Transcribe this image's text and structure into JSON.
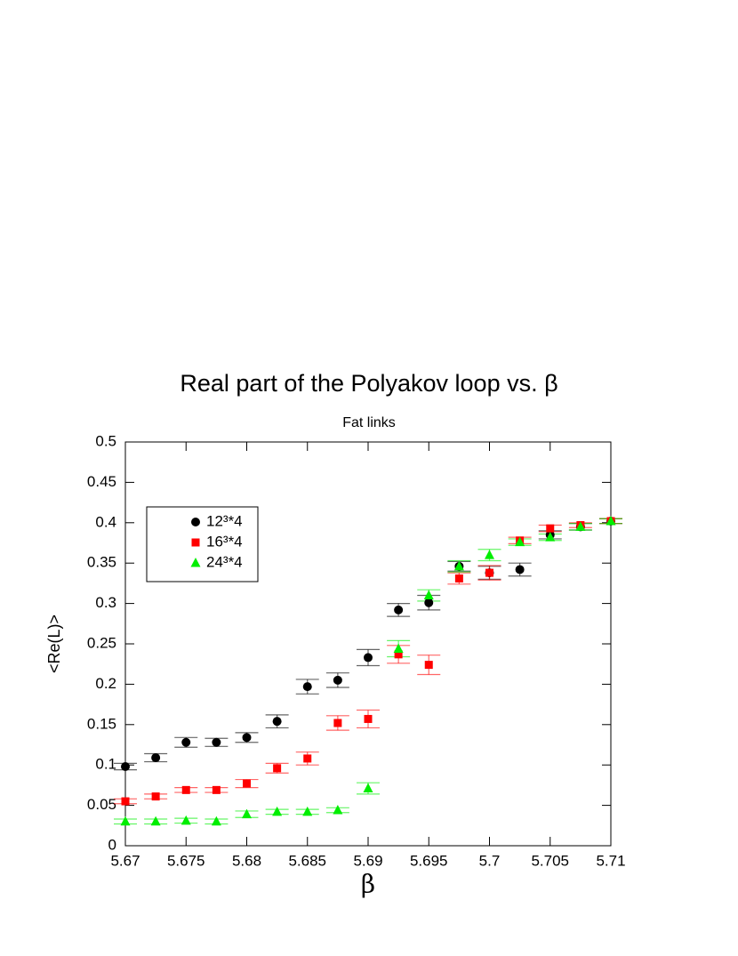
{
  "chart_data": {
    "type": "scatter",
    "title": "Real part of the Polyakov loop vs.  β",
    "subtitle": "Fat links",
    "x_label": "β",
    "y_label": "<Re(L)>",
    "x": [
      5.67,
      5.6725,
      5.675,
      5.6775,
      5.68,
      5.6825,
      5.685,
      5.6875,
      5.69,
      5.6925,
      5.695,
      5.6975,
      5.7,
      5.7025,
      5.705,
      5.7075,
      5.71
    ],
    "series": [
      {
        "name": "12³*4",
        "color": "#000000",
        "marker": "circle",
        "values": [
          0.098,
          0.109,
          0.128,
          0.128,
          0.134,
          0.154,
          0.197,
          0.205,
          0.233,
          0.292,
          0.301,
          0.346,
          0.338,
          0.342,
          0.385,
          0.395,
          0.402
        ],
        "errors": [
          0.004,
          0.005,
          0.006,
          0.005,
          0.006,
          0.008,
          0.009,
          0.009,
          0.01,
          0.008,
          0.009,
          0.006,
          0.008,
          0.008,
          0.005,
          0.004,
          0.003
        ]
      },
      {
        "name": "16³*4",
        "color": "#ff0000",
        "marker": "square",
        "values": [
          0.055,
          0.061,
          0.069,
          0.069,
          0.077,
          0.096,
          0.108,
          0.152,
          0.157,
          0.237,
          0.224,
          0.331,
          0.338,
          0.378,
          0.393,
          0.397,
          0.402
        ],
        "errors": [
          0.003,
          0.003,
          0.003,
          0.003,
          0.005,
          0.006,
          0.008,
          0.009,
          0.011,
          0.011,
          0.012,
          0.007,
          0.009,
          0.004,
          0.004,
          0.003,
          0.003
        ]
      },
      {
        "name": "24³*4",
        "color": "#00ee00",
        "marker": "triangle",
        "values": [
          0.03,
          0.03,
          0.031,
          0.03,
          0.039,
          0.042,
          0.042,
          0.044,
          0.071,
          0.244,
          0.31,
          0.346,
          0.36,
          0.376,
          0.382,
          0.395,
          0.402
        ],
        "errors": [
          0.003,
          0.003,
          0.003,
          0.003,
          0.004,
          0.003,
          0.003,
          0.003,
          0.007,
          0.01,
          0.007,
          0.007,
          0.007,
          0.004,
          0.004,
          0.004,
          0.003
        ]
      }
    ],
    "xlim": [
      5.67,
      5.71
    ],
    "xticks": [
      5.67,
      5.675,
      5.68,
      5.685,
      5.69,
      5.695,
      5.7,
      5.705,
      5.71
    ],
    "ylim": [
      0,
      0.5
    ],
    "yticks": [
      0,
      0.05,
      0.1,
      0.15,
      0.2,
      0.25,
      0.3,
      0.35,
      0.4,
      0.45,
      0.5
    ],
    "legend": "upper left"
  }
}
